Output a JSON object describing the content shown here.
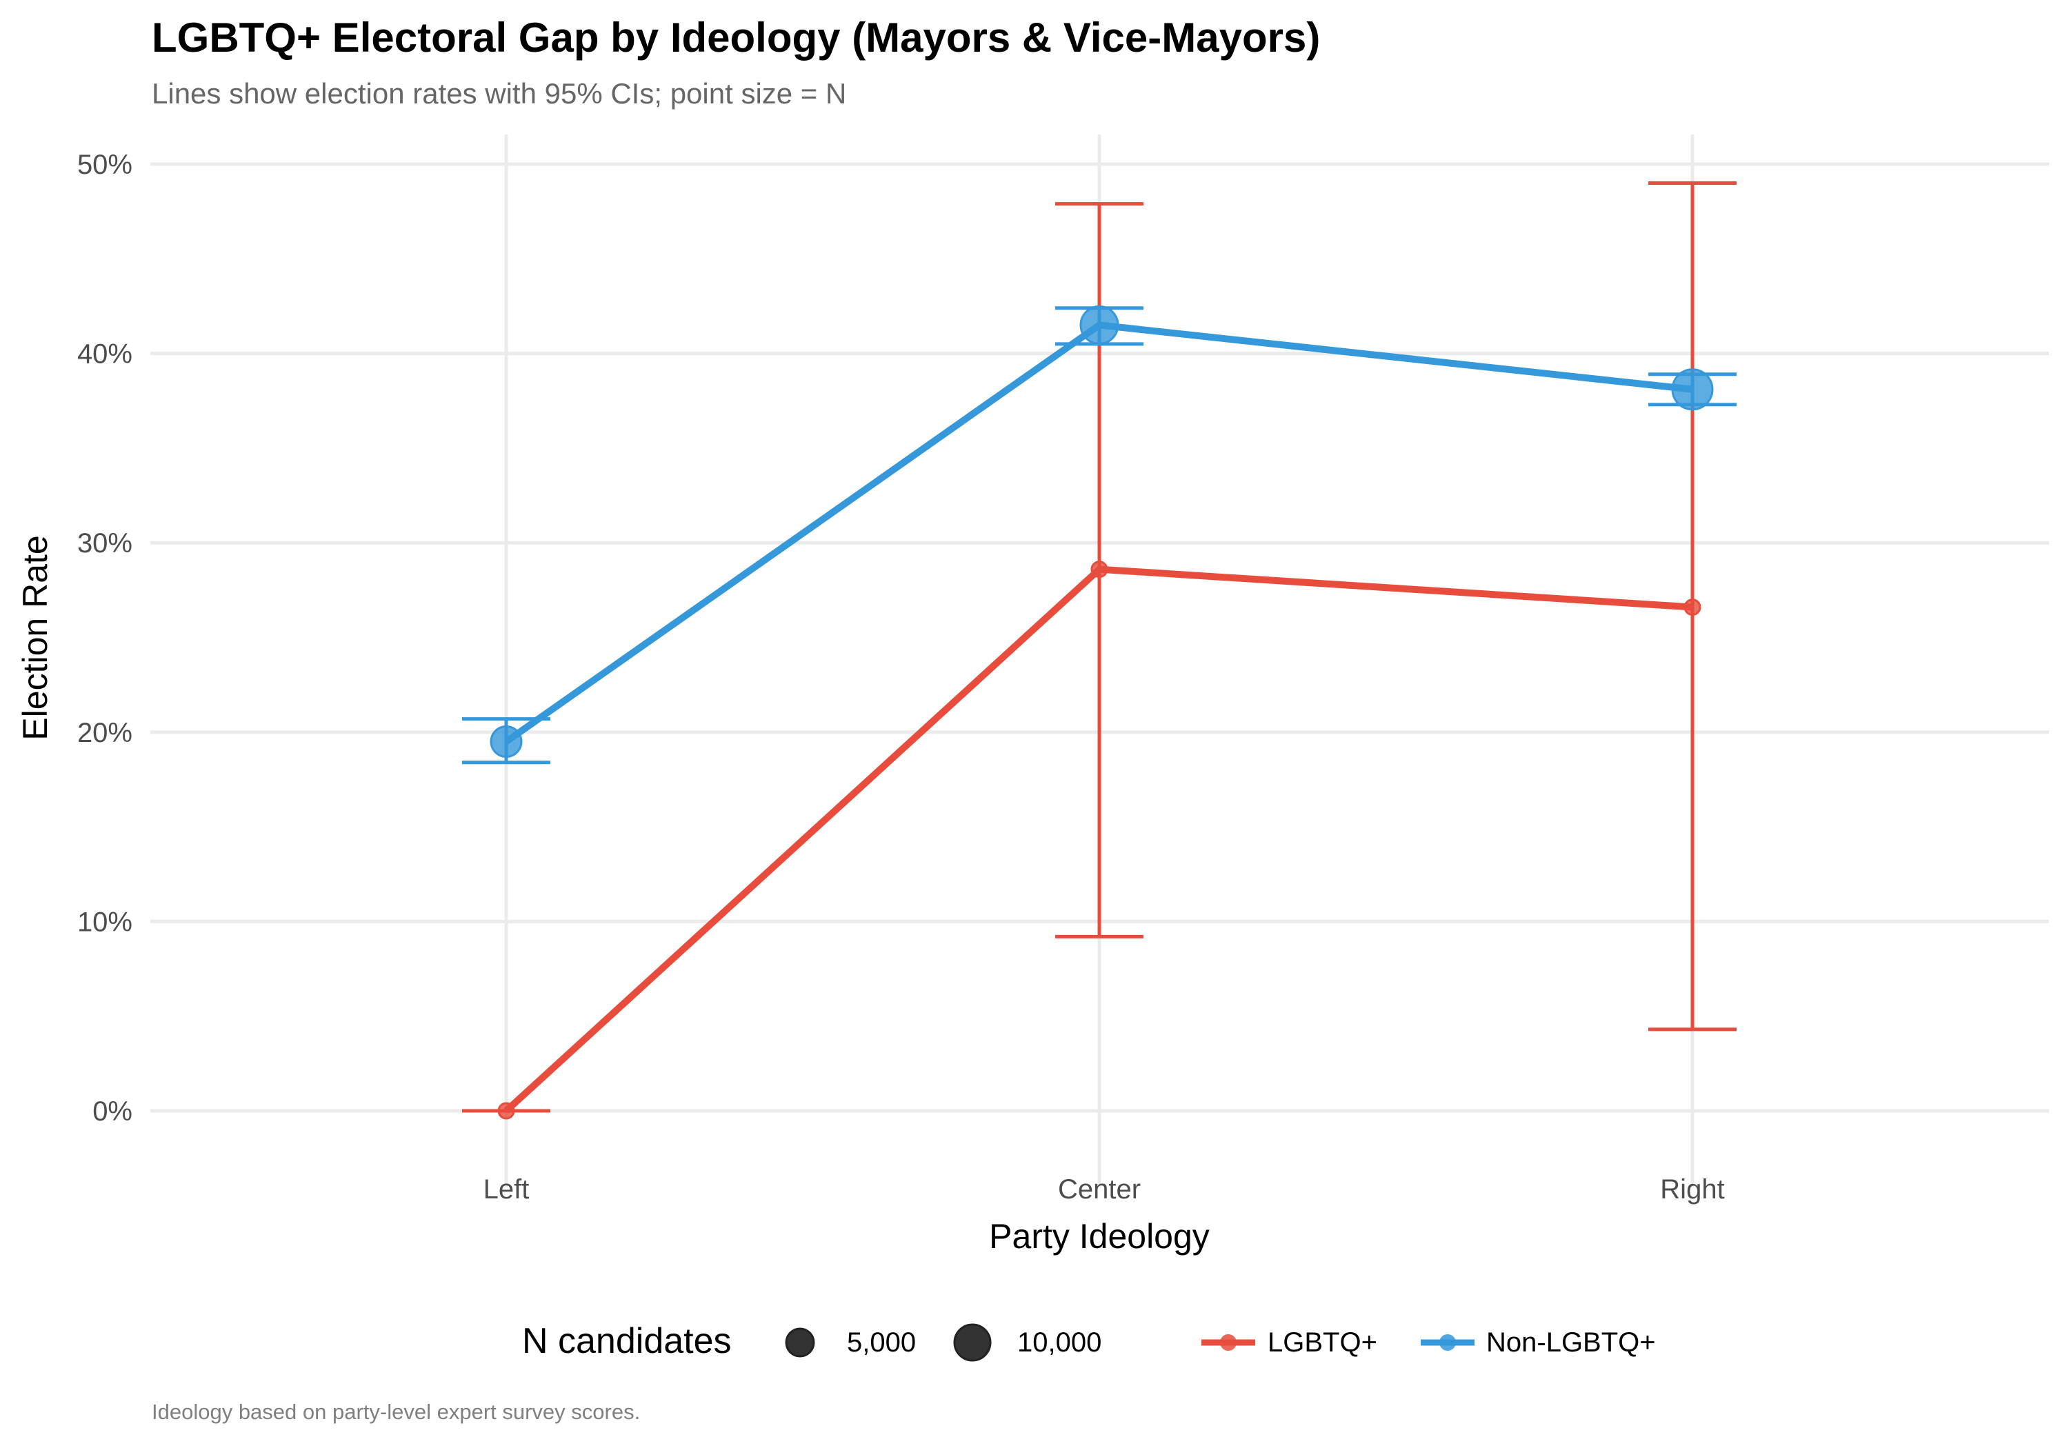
{
  "title": "LGBTQ+ Electoral Gap by Ideology (Mayors & Vice-Mayors)",
  "subtitle": "Lines show election rates with 95% CIs; point size = N",
  "caption": "Ideology based on party-level expert survey scores.",
  "colors": {
    "lgbtq": "#E74C3C",
    "non_lgbtq": "#3498DB",
    "grid": "#EBEBEB",
    "size_legend": "#333333"
  },
  "legend": {
    "size_title": "N candidates",
    "size_entries": [
      {
        "label": "5,000",
        "value": 5000
      },
      {
        "label": "10,000",
        "value": 10000
      }
    ],
    "color_entries": [
      {
        "label": "LGBTQ+",
        "series": "lgbtq"
      },
      {
        "label": "Non-LGBTQ+",
        "series": "non_lgbtq"
      }
    ]
  },
  "chart_data": {
    "type": "line",
    "title": "LGBTQ+ Electoral Gap by Ideology (Mayors & Vice-Mayors)",
    "subtitle": "Lines show election rates with 95% CIs; point size = N",
    "xlabel": "Party Ideology",
    "ylabel": "Election Rate",
    "categories": [
      "Left",
      "Center",
      "Right"
    ],
    "yticks": [
      0,
      10,
      20,
      30,
      40,
      50
    ],
    "ytick_labels": [
      "0%",
      "10%",
      "20%",
      "30%",
      "40%",
      "50%"
    ],
    "ylim": [
      -2.8,
      50.5
    ],
    "grid": true,
    "legend_position": "bottom",
    "series": [
      {
        "name": "LGBTQ+",
        "key": "lgbtq",
        "values": [
          0.0,
          28.6,
          26.6
        ],
        "ci_low": [
          0.0,
          9.2,
          4.3
        ],
        "ci_high": [
          0.0,
          47.9,
          49.0
        ],
        "size": "small"
      },
      {
        "name": "Non-LGBTQ+",
        "key": "non_lgbtq",
        "values": [
          19.5,
          41.5,
          38.1
        ],
        "ci_low": [
          18.4,
          40.5,
          37.3
        ],
        "ci_high": [
          20.7,
          42.4,
          38.9
        ],
        "size": "large"
      }
    ]
  }
}
